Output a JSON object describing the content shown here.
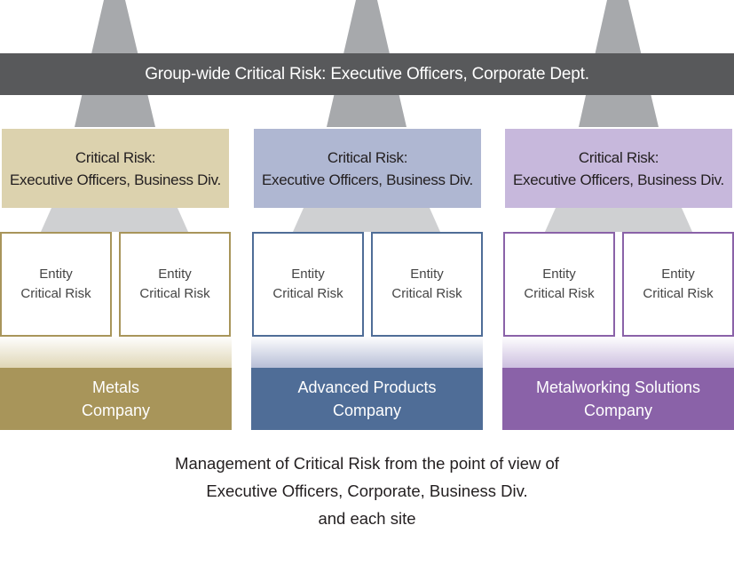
{
  "banner": {
    "text": "Group-wide Critical Risk: Executive Officers, Corporate Dept."
  },
  "colors": {
    "banner": "#58595b",
    "cone": "#a7a9ac",
    "metals_light": "#dcd2ae",
    "metals_dark": "#a8955a",
    "advanced_light": "#afb7d2",
    "advanced_dark": "#4f6d97",
    "metalworking_light": "#c7b8dc",
    "metalworking_dark": "#8a62a8"
  },
  "companies": [
    {
      "division": {
        "line1": "Critical Risk:",
        "line2": "Executive Officers, Business Div."
      },
      "entities": [
        {
          "line1": "Entity",
          "line2": "Critical Risk"
        },
        {
          "line1": "Entity",
          "line2": "Critical Risk"
        }
      ],
      "company": {
        "line1": "Metals",
        "line2": "Company"
      }
    },
    {
      "division": {
        "line1": "Critical Risk:",
        "line2": "Executive Officers, Business Div."
      },
      "entities": [
        {
          "line1": "Entity",
          "line2": "Critical Risk"
        },
        {
          "line1": "Entity",
          "line2": "Critical Risk"
        }
      ],
      "company": {
        "line1": "Advanced Products",
        "line2": "Company"
      }
    },
    {
      "division": {
        "line1": "Critical Risk:",
        "line2": "Executive Officers, Business Div."
      },
      "entities": [
        {
          "line1": "Entity",
          "line2": "Critical Risk"
        },
        {
          "line1": "Entity",
          "line2": "Critical Risk"
        }
      ],
      "company": {
        "line1": "Metalworking Solutions",
        "line2": "Company"
      }
    }
  ],
  "caption": {
    "line1": "Management of Critical Risk from the point of view of",
    "line2": "Executive Officers, Corporate, Business Div.",
    "line3": "and each site"
  }
}
